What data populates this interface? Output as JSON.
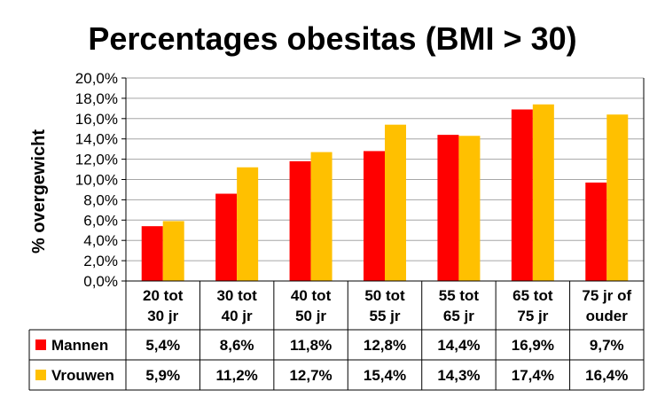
{
  "chart_data": {
    "type": "bar",
    "title": "Percentages obesitas (BMI > 30)",
    "ylabel": "% overgewicht",
    "xlabel": "",
    "ylim": [
      0,
      20
    ],
    "y_ticks": [
      "0,0%",
      "2,0%",
      "4,0%",
      "6,0%",
      "8,0%",
      "10,0%",
      "12,0%",
      "14,0%",
      "16,0%",
      "18,0%",
      "20,0%"
    ],
    "grid": true,
    "legend": "data-table",
    "categories": [
      [
        "20 tot",
        "30 jr"
      ],
      [
        "30 tot",
        "40 jr"
      ],
      [
        "40 tot",
        "50 jr"
      ],
      [
        "50 tot",
        "55 jr"
      ],
      [
        "55 tot",
        "65 jr"
      ],
      [
        "65 tot",
        "75 jr"
      ],
      [
        "75 jr of",
        "ouder"
      ]
    ],
    "series": [
      {
        "name": "Mannen",
        "color": "#ff0000",
        "values": [
          5.4,
          8.6,
          11.8,
          12.8,
          14.4,
          16.9,
          9.7
        ],
        "labels": [
          "5,4%",
          "8,6%",
          "11,8%",
          "12,8%",
          "14,4%",
          "16,9%",
          "9,7%"
        ]
      },
      {
        "name": "Vrouwen",
        "color": "#ffc000",
        "values": [
          5.9,
          11.2,
          12.7,
          15.4,
          14.3,
          17.4,
          16.4
        ],
        "labels": [
          "5,9%",
          "11,2%",
          "12,7%",
          "15,4%",
          "14,3%",
          "17,4%",
          "16,4%"
        ]
      }
    ]
  }
}
